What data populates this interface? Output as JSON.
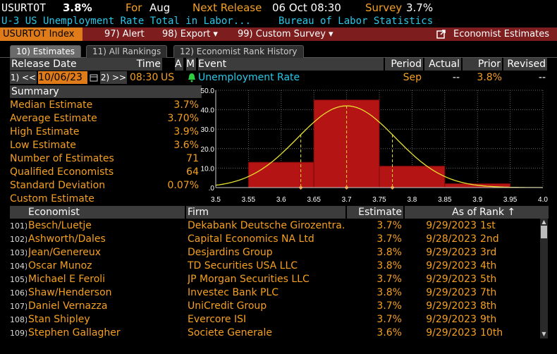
{
  "header": {
    "ticker": "USURTOT",
    "value": "3.8%",
    "for_label": "For",
    "for_value": "Aug",
    "next_release_label": "Next Release",
    "next_release_value": "06 Oct 08:30",
    "survey_label": "Survey",
    "survey_value": "3.7%",
    "description": "U-3 US Unemployment Rate Total in Labor...",
    "source": "Bureau of Labor Statistics"
  },
  "menu": {
    "index": "USURTOT Index",
    "alert": "97) Alert",
    "export": "98) Export ▾",
    "custom_survey": "99) Custom Survey ▾",
    "economist_estimates": "Economist Estimates"
  },
  "tabs": [
    "10) Estimates",
    "11) All Rankings",
    "12) Economist Rank History"
  ],
  "release_table": {
    "headers": {
      "release_date": "Release Date",
      "time": "Time",
      "a": "A",
      "m": "M",
      "event": "Event",
      "period": "Period",
      "actual": "Actual",
      "prior": "Prior",
      "revised": "Revised"
    },
    "prev_btn": "1) <<",
    "date": "10/06/23",
    "next_btn": "2) >>",
    "time": "08:30",
    "country": "US",
    "event": "Unemployment Rate",
    "period": "Sep",
    "actual": "--",
    "prior": "3.8%",
    "revised": "--"
  },
  "summary": {
    "title": "Summary",
    "rows": [
      {
        "label": "Median Estimate",
        "value": "3.7%"
      },
      {
        "label": "Average Estimate",
        "value": "3.70%"
      },
      {
        "label": "High Estimate",
        "value": "3.9%"
      },
      {
        "label": "Low Estimate",
        "value": "3.6%"
      },
      {
        "label": "Number of Estimates",
        "value": "71"
      },
      {
        "label": "Qualified Economists",
        "value": "64"
      },
      {
        "label": "Standard Deviation",
        "value": "0.07%"
      },
      {
        "label": "Custom Estimate",
        "value": ""
      }
    ]
  },
  "chart_data": {
    "type": "bar",
    "bins": [
      {
        "from": 3.55,
        "to": 3.65,
        "value": 13
      },
      {
        "from": 3.65,
        "to": 3.75,
        "value": 45
      },
      {
        "from": 3.75,
        "to": 3.85,
        "value": 11
      },
      {
        "from": 3.85,
        "to": 3.95,
        "value": 2
      }
    ],
    "curve": {
      "type": "normal",
      "mean": 3.7,
      "peak": 42
    },
    "markers": [
      3.63,
      3.7,
      3.77
    ],
    "xlim": [
      3.5,
      4.0
    ],
    "ylim": [
      0,
      50
    ],
    "xticks": [
      "3.5",
      "3.55",
      "3.6",
      "3.65",
      "3.7",
      "3.75",
      "3.8",
      "3.85",
      "3.9",
      "3.95",
      "4.0"
    ],
    "yticks": [
      "50.0",
      "40.0",
      "30.0",
      "20.0",
      "10.0",
      ".0"
    ],
    "colors": {
      "bar": "#b51414",
      "curve": "#e8e030",
      "marker": "#f5a020",
      "grid": "#666666"
    }
  },
  "economists": {
    "headers": {
      "economist": "Economist",
      "firm": "Firm",
      "estimate": "Estimate",
      "as_of": "As of",
      "rank": "Rank ↑"
    },
    "rows": [
      {
        "num": "101)",
        "name": "Besch/Luetje",
        "firm": "Dekabank Deutsche Girozentra...",
        "estimate": "3.7%",
        "as_of": "9/29/2023",
        "rank": "1st"
      },
      {
        "num": "102)",
        "name": "Ashworth/Dales",
        "firm": "Capital Economics NA Ltd",
        "estimate": "3.7%",
        "as_of": "9/28/2023",
        "rank": "2nd"
      },
      {
        "num": "103)",
        "name": "Jean/Genereux",
        "firm": "Desjardins Group",
        "estimate": "3.8%",
        "as_of": "9/29/2023",
        "rank": "3rd"
      },
      {
        "num": "104)",
        "name": "Oscar Munoz",
        "firm": "TD Securities USA LLC",
        "estimate": "3.8%",
        "as_of": "9/29/2023",
        "rank": "4th"
      },
      {
        "num": "105)",
        "name": "Michael E Feroli",
        "firm": "JP Morgan Securities LLC",
        "estimate": "3.7%",
        "as_of": "9/29/2023",
        "rank": "5th"
      },
      {
        "num": "106)",
        "name": "Shaw/Henderson",
        "firm": "Investec Bank PLC",
        "estimate": "3.8%",
        "as_of": "9/29/2023",
        "rank": "7th"
      },
      {
        "num": "107)",
        "name": "Daniel Vernazza",
        "firm": "UniCredit Group",
        "estimate": "3.7%",
        "as_of": "9/29/2023",
        "rank": "8th"
      },
      {
        "num": "108)",
        "name": "Stan Shipley",
        "firm": "Evercore ISI",
        "estimate": "3.7%",
        "as_of": "9/29/2023",
        "rank": "9th"
      },
      {
        "num": "109)",
        "name": "Stephen Gallagher",
        "firm": "Societe Generale",
        "estimate": "3.6%",
        "as_of": "9/29/2023",
        "rank": "10th"
      }
    ]
  }
}
